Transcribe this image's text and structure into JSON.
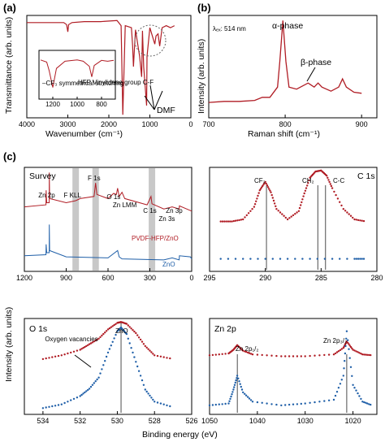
{
  "colors": {
    "red": "#b01c24",
    "blue": "#1f5fa8",
    "band": "#c8c8c8"
  },
  "panels": {
    "a": "(a)",
    "b": "(b)",
    "c": "(c)"
  },
  "chart_data": [
    {
      "id": "a",
      "type": "line",
      "xlabel": "Wavenumber (cm⁻¹)",
      "ylabel": "Transmittance (arb. units)",
      "xlim": [
        4000,
        0
      ],
      "xticks": [
        4000,
        3000,
        2000,
        1000,
        0
      ],
      "series": [
        {
          "x": [
            4000,
            3500,
            3100,
            3030,
            3000,
            2980,
            2900,
            2600,
            2200,
            1800,
            1700,
            1660,
            1600,
            1450,
            1420,
            1400,
            1350,
            1250,
            1200,
            1180,
            1150,
            1080,
            1070,
            1000,
            880,
            850,
            800,
            760,
            700,
            600,
            500,
            400
          ],
          "y": [
            0.93,
            0.93,
            0.93,
            0.91,
            0.84,
            0.91,
            0.93,
            0.94,
            0.94,
            0.95,
            0.9,
            0.03,
            0.9,
            0.88,
            0.7,
            0.5,
            0.86,
            0.6,
            0.4,
            0.85,
            0.5,
            0.12,
            0.6,
            0.88,
            0.72,
            0.8,
            0.82,
            0.7,
            0.88,
            0.9,
            0.88,
            0.9
          ]
        }
      ],
      "inset": {
        "xticks": [
          1200,
          1000,
          800
        ],
        "series": [
          {
            "x": [
              1300,
              1250,
              1230,
              1200,
              1170,
              1100,
              1000,
              950,
              900,
              880,
              860,
              800,
              750,
              700
            ],
            "y": [
              0.85,
              0.8,
              0.6,
              0.2,
              0.65,
              0.82,
              0.85,
              0.82,
              0.7,
              0.45,
              0.72,
              0.84,
              0.82,
              0.84
            ]
          }
        ],
        "annotations": [
          "–CF₃ symmetrical stretching",
          "HFP Vinylidene group C-F"
        ]
      },
      "annotations": {
        "dmf": "DMF"
      }
    },
    {
      "id": "b",
      "type": "line",
      "xlabel": "Raman shift (cm⁻¹)",
      "ylabel": "Intensity (arb. units)",
      "xlim": [
        700,
        900
      ],
      "xticks": [
        700,
        800,
        900
      ],
      "series": [
        {
          "x": [
            700,
            720,
            740,
            760,
            770,
            775,
            780,
            790,
            793,
            797,
            801,
            805,
            815,
            830,
            838,
            843,
            848,
            860,
            870,
            875,
            880,
            890,
            900
          ],
          "y": [
            0.15,
            0.16,
            0.16,
            0.17,
            0.2,
            0.2,
            0.2,
            0.3,
            0.55,
            0.95,
            0.55,
            0.3,
            0.28,
            0.34,
            0.3,
            0.34,
            0.3,
            0.26,
            0.3,
            0.38,
            0.3,
            0.25,
            0.24
          ]
        }
      ],
      "annotations": {
        "laser": "λₑₓ: 514 nm",
        "alpha": "α-phase",
        "beta": "β-phase"
      }
    },
    {
      "id": "c-survey",
      "type": "line",
      "title": "Survey",
      "xlim": [
        1200,
        0
      ],
      "xticks": [
        1200,
        900,
        600,
        300,
        0
      ],
      "series": [
        {
          "name": "PVDF-HFP/ZnO",
          "x": [
            1200,
            1045,
            1044,
            1040,
            1022,
            1021,
            1019,
            900,
            832,
            800,
            700,
            689,
            680,
            600,
            560,
            540,
            531,
            520,
            500,
            480,
            320,
            292,
            285,
            200,
            140,
            90,
            88,
            0
          ],
          "y": [
            0.62,
            0.64,
            0.78,
            0.66,
            0.66,
            0.95,
            0.7,
            0.66,
            0.68,
            0.7,
            0.72,
            0.85,
            0.74,
            0.7,
            0.75,
            0.74,
            0.8,
            0.72,
            0.76,
            0.7,
            0.64,
            0.72,
            0.65,
            0.6,
            0.62,
            0.6,
            0.63,
            0.58
          ]
        },
        {
          "name": "ZnO",
          "x": [
            1200,
            1045,
            1044,
            1040,
            1022,
            1021,
            1019,
            900,
            600,
            531,
            520,
            500,
            200,
            140,
            90,
            88,
            10,
            0
          ],
          "y": [
            0.15,
            0.16,
            0.26,
            0.18,
            0.18,
            0.45,
            0.2,
            0.14,
            0.13,
            0.2,
            0.14,
            0.12,
            0.11,
            0.13,
            0.11,
            0.15,
            0.14,
            0.12
          ]
        }
      ],
      "bands": [
        832,
        689,
        285
      ],
      "peaks": [
        "Zn 2p",
        "F KLL",
        "F 1s",
        "O 1s",
        "Zn LMM",
        "C 1s",
        "Zn 3s",
        "Zn 3p"
      ]
    },
    {
      "id": "c-c1s",
      "type": "scatter",
      "title": "C 1s",
      "xlim": [
        295,
        280
      ],
      "xticks": [
        295,
        290,
        285,
        280
      ],
      "series": [
        {
          "x": [
            294,
            293,
            292,
            291,
            290.5,
            290,
            289.5,
            289,
            288,
            287,
            286.5,
            286,
            285.5,
            285,
            284.5,
            284,
            283,
            282,
            281
          ],
          "y": [
            0.48,
            0.48,
            0.5,
            0.62,
            0.78,
            0.86,
            0.76,
            0.6,
            0.5,
            0.58,
            0.75,
            0.9,
            0.96,
            0.97,
            0.92,
            0.8,
            0.6,
            0.5,
            0.48
          ]
        },
        {
          "x": [
            294,
            290,
            286,
            282,
            281
          ],
          "y": [
            0.12,
            0.12,
            0.12,
            0.12,
            0.12
          ]
        }
      ],
      "lines": [
        289.9,
        285.3,
        284.6
      ],
      "labels": {
        "cf2": "CF₂",
        "ch2": "CH₂",
        "cc": "C-C"
      }
    },
    {
      "id": "c-o1s",
      "type": "scatter",
      "title": "O 1s",
      "xlim": [
        535,
        526
      ],
      "xticks": [
        534,
        532,
        530,
        528,
        526
      ],
      "series": [
        {
          "x": [
            534,
            533,
            532,
            531.5,
            531,
            530.5,
            530,
            529.8,
            529.5,
            529,
            528.5,
            528,
            527
          ],
          "y": [
            0.58,
            0.62,
            0.68,
            0.74,
            0.8,
            0.9,
            0.97,
            0.98,
            0.96,
            0.86,
            0.72,
            0.62,
            0.58
          ]
        },
        {
          "x": [
            534,
            533,
            532,
            531.5,
            531,
            530.5,
            530,
            529.8,
            529.5,
            529,
            528.5,
            528,
            527
          ],
          "y": [
            0.05,
            0.09,
            0.18,
            0.26,
            0.38,
            0.65,
            0.88,
            0.92,
            0.85,
            0.55,
            0.25,
            0.12,
            0.06
          ]
        }
      ],
      "lines": [
        529.8
      ],
      "labels": {
        "zno": "ZnO",
        "vac": "Oxygen vacancies"
      }
    },
    {
      "id": "c-zn2p",
      "type": "scatter",
      "title": "Zn 2p",
      "xlim": [
        1050,
        1015
      ],
      "xticks": [
        1050,
        1040,
        1030,
        1020
      ],
      "series": [
        {
          "x": [
            1050,
            1046,
            1045,
            1044.2,
            1043,
            1041,
            1035,
            1030,
            1024,
            1022,
            1021.3,
            1020,
            1018,
            1016
          ],
          "y": [
            0.62,
            0.64,
            0.68,
            0.73,
            0.67,
            0.63,
            0.61,
            0.61,
            0.63,
            0.7,
            0.77,
            0.68,
            0.63,
            0.62
          ]
        },
        {
          "x": [
            1050,
            1046,
            1045,
            1044.2,
            1043,
            1041,
            1035,
            1030,
            1024,
            1022,
            1021.3,
            1020,
            1018,
            1016
          ],
          "y": [
            0.08,
            0.1,
            0.25,
            0.4,
            0.22,
            0.12,
            0.08,
            0.1,
            0.14,
            0.4,
            0.88,
            0.3,
            0.12,
            0.08
          ]
        }
      ],
      "lines": [
        1044.2,
        1021.3
      ],
      "labels": {
        "p12": "Zn 2p₁/₂",
        "p32": "Zn 2p₃/₂"
      }
    }
  ],
  "shared": {
    "intensity": "Intensity (arb. units)",
    "binding": "Binding energy (eV)",
    "hybrid": "PVDF-HFP/ZnO",
    "zno": "ZnO"
  }
}
